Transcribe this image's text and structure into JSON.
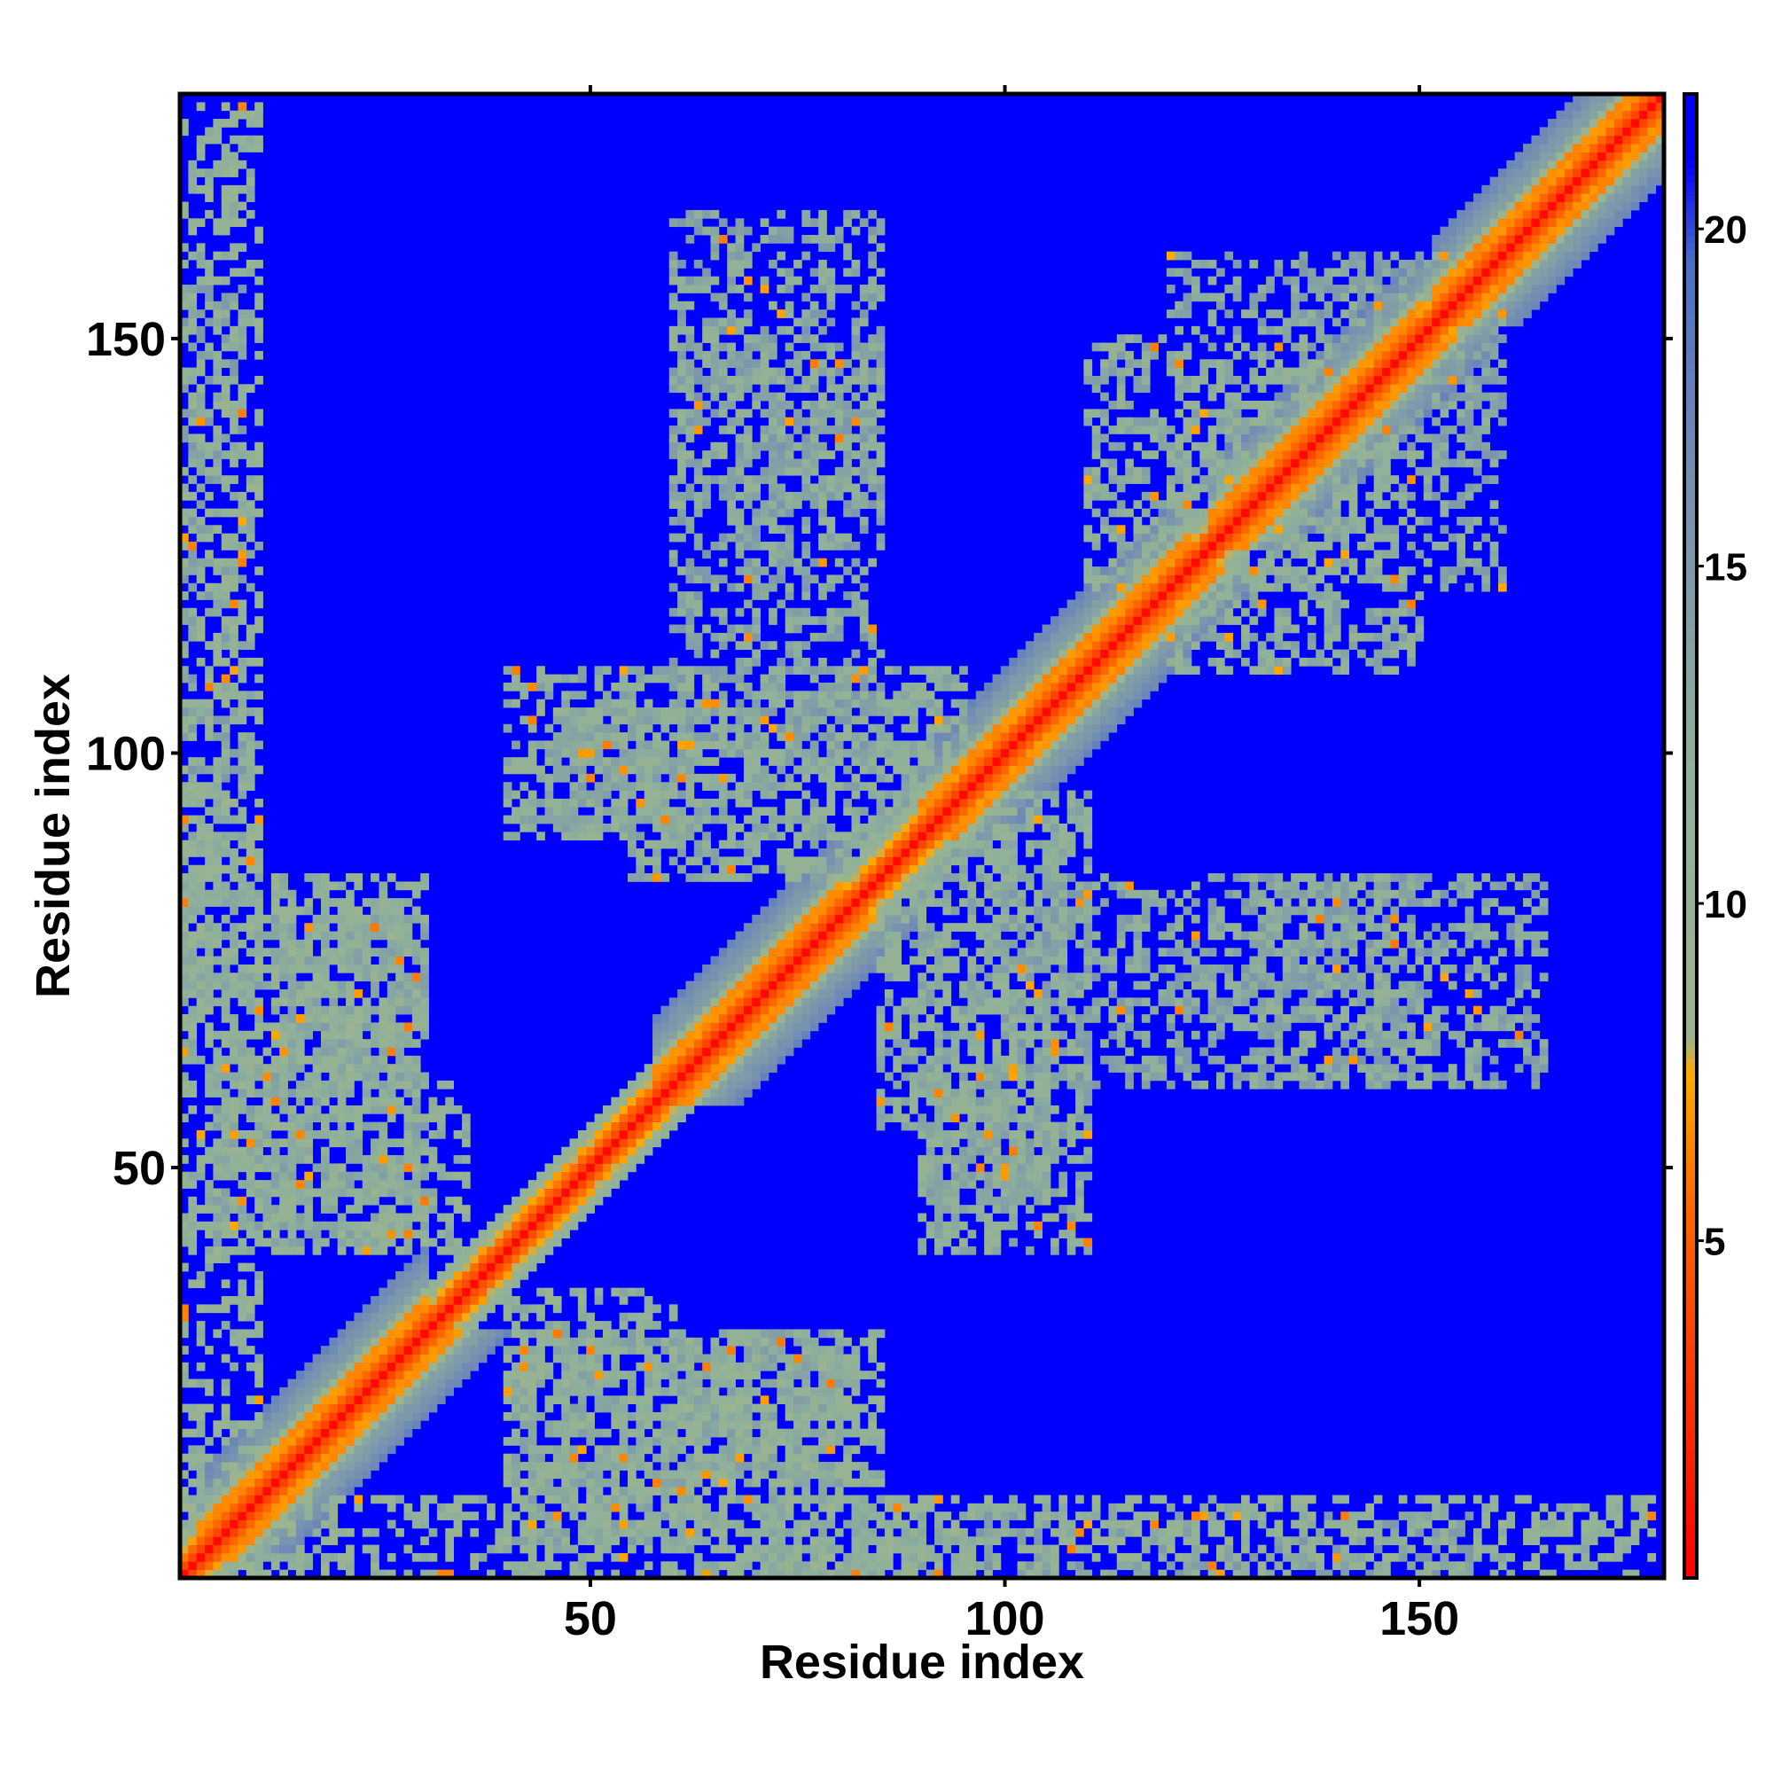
{
  "chart_data": {
    "type": "heatmap",
    "title": "",
    "xlabel": "Residue index",
    "ylabel": "Residue index",
    "n_residues": 179,
    "xlim": [
      1,
      179
    ],
    "ylim": [
      1,
      179
    ],
    "x_ticks": [
      50,
      100,
      150
    ],
    "y_ticks": [
      50,
      100,
      150
    ],
    "x_tick_labels": [
      "50",
      "100",
      "150"
    ],
    "y_tick_labels": [
      "50",
      "100",
      "150"
    ],
    "colorbar": {
      "range": [
        0,
        22
      ],
      "ticks": [
        5,
        10,
        15,
        20
      ],
      "tick_labels": [
        "5",
        "10",
        "15",
        "20"
      ],
      "stops": [
        {
          "value": 0,
          "color": "#ff0000"
        },
        {
          "value": 5.5,
          "color": "#ff6600"
        },
        {
          "value": 7.5,
          "color": "#ffaa00"
        },
        {
          "value": 8.0,
          "color": "#9cb48e"
        },
        {
          "value": 12.0,
          "color": "#8fb09a"
        },
        {
          "value": 16.0,
          "color": "#7890b0"
        },
        {
          "value": 19.5,
          "color": "#4a70c8"
        },
        {
          "value": 21.0,
          "color": "#0000ff"
        }
      ]
    },
    "background_value": 22,
    "background_color": "#0000ff",
    "diagonal_bands": [
      {
        "offset": 0,
        "value": 1
      },
      {
        "offset": 1,
        "value": 3.8
      },
      {
        "offset": 2,
        "value": 5.8
      },
      {
        "offset": 3,
        "value": 7.5
      },
      {
        "offset": 4,
        "value": 9.5
      },
      {
        "offset": 5,
        "value": 11.5
      }
    ],
    "helix_segments": [
      [
        3,
        30
      ],
      [
        58,
        80
      ],
      [
        90,
        122
      ],
      [
        125,
        150
      ],
      [
        152,
        178
      ]
    ],
    "contact_regions": [
      {
        "x": [
          1,
          10
        ],
        "y": [
          1,
          178
        ],
        "value": 11,
        "density": 0.45
      },
      {
        "x": [
          12,
          30
        ],
        "y": [
          50,
          85
        ],
        "value": 11,
        "density": 0.55
      },
      {
        "x": [
          45,
          60
        ],
        "y": [
          90,
          105
        ],
        "value": 12,
        "density": 0.6
      },
      {
        "x": [
          60,
          85
        ],
        "y": [
          100,
          165
        ],
        "value": 13,
        "density": 0.45
      },
      {
        "x": [
          85,
          110
        ],
        "y": [
          55,
          95
        ],
        "value": 12,
        "density": 0.6
      },
      {
        "x": [
          110,
          140
        ],
        "y": [
          120,
          150
        ],
        "value": 12,
        "density": 0.45
      },
      {
        "x": [
          130,
          150
        ],
        "y": [
          60,
          85
        ],
        "value": 12,
        "density": 0.5
      },
      {
        "x": [
          120,
          160
        ],
        "y": [
          135,
          160
        ],
        "value": 13,
        "density": 0.4
      },
      {
        "x": [
          40,
          80
        ],
        "y": [
          5,
          30
        ],
        "value": 12,
        "density": 0.55
      },
      {
        "x": [
          5,
          35
        ],
        "y": [
          40,
          60
        ],
        "value": 11,
        "density": 0.5
      },
      {
        "x": [
          90,
          110
        ],
        "y": [
          40,
          60
        ],
        "value": 12,
        "density": 0.5
      },
      {
        "x": [
          60,
          95
        ],
        "y": [
          1,
          10
        ],
        "value": 11,
        "density": 0.5
      },
      {
        "x": [
          95,
          160
        ],
        "y": [
          1,
          8
        ],
        "value": 13,
        "density": 0.3
      }
    ]
  }
}
